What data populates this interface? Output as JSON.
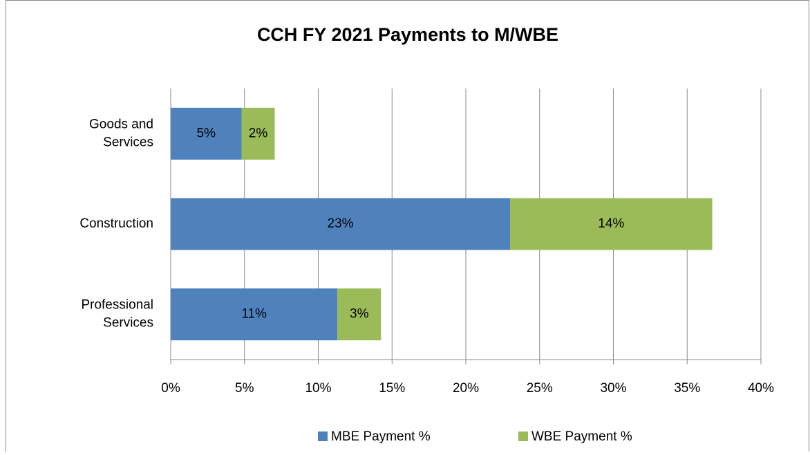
{
  "chart_data": {
    "type": "stacked-barh",
    "title": "CCH FY 2021 Payments to M/WBE",
    "categories": [
      "Goods and Services",
      "Construction",
      "Professional Services"
    ],
    "series": [
      {
        "name": "MBE Payment %",
        "color": "#4f81bd",
        "values": [
          4.8,
          23.0,
          11.3
        ],
        "value_labels": [
          "5%",
          "23%",
          "11%"
        ]
      },
      {
        "name": "WBE Payment %",
        "color": "#9bbb59",
        "values": [
          2.25,
          13.7,
          2.95
        ],
        "value_labels": [
          "2%",
          "14%",
          "3%"
        ]
      }
    ],
    "xlim": [
      0,
      40
    ],
    "xticks": [
      {
        "value": 0,
        "label": "0%"
      },
      {
        "value": 5,
        "label": "5%"
      },
      {
        "value": 10,
        "label": "10%"
      },
      {
        "value": 15,
        "label": "15%"
      },
      {
        "value": 20,
        "label": "20%"
      },
      {
        "value": 25,
        "label": "25%"
      },
      {
        "value": 30,
        "label": "30%"
      },
      {
        "value": 35,
        "label": "35%"
      },
      {
        "value": 40,
        "label": "40%"
      }
    ],
    "grid": true,
    "legend": "bottom"
  }
}
